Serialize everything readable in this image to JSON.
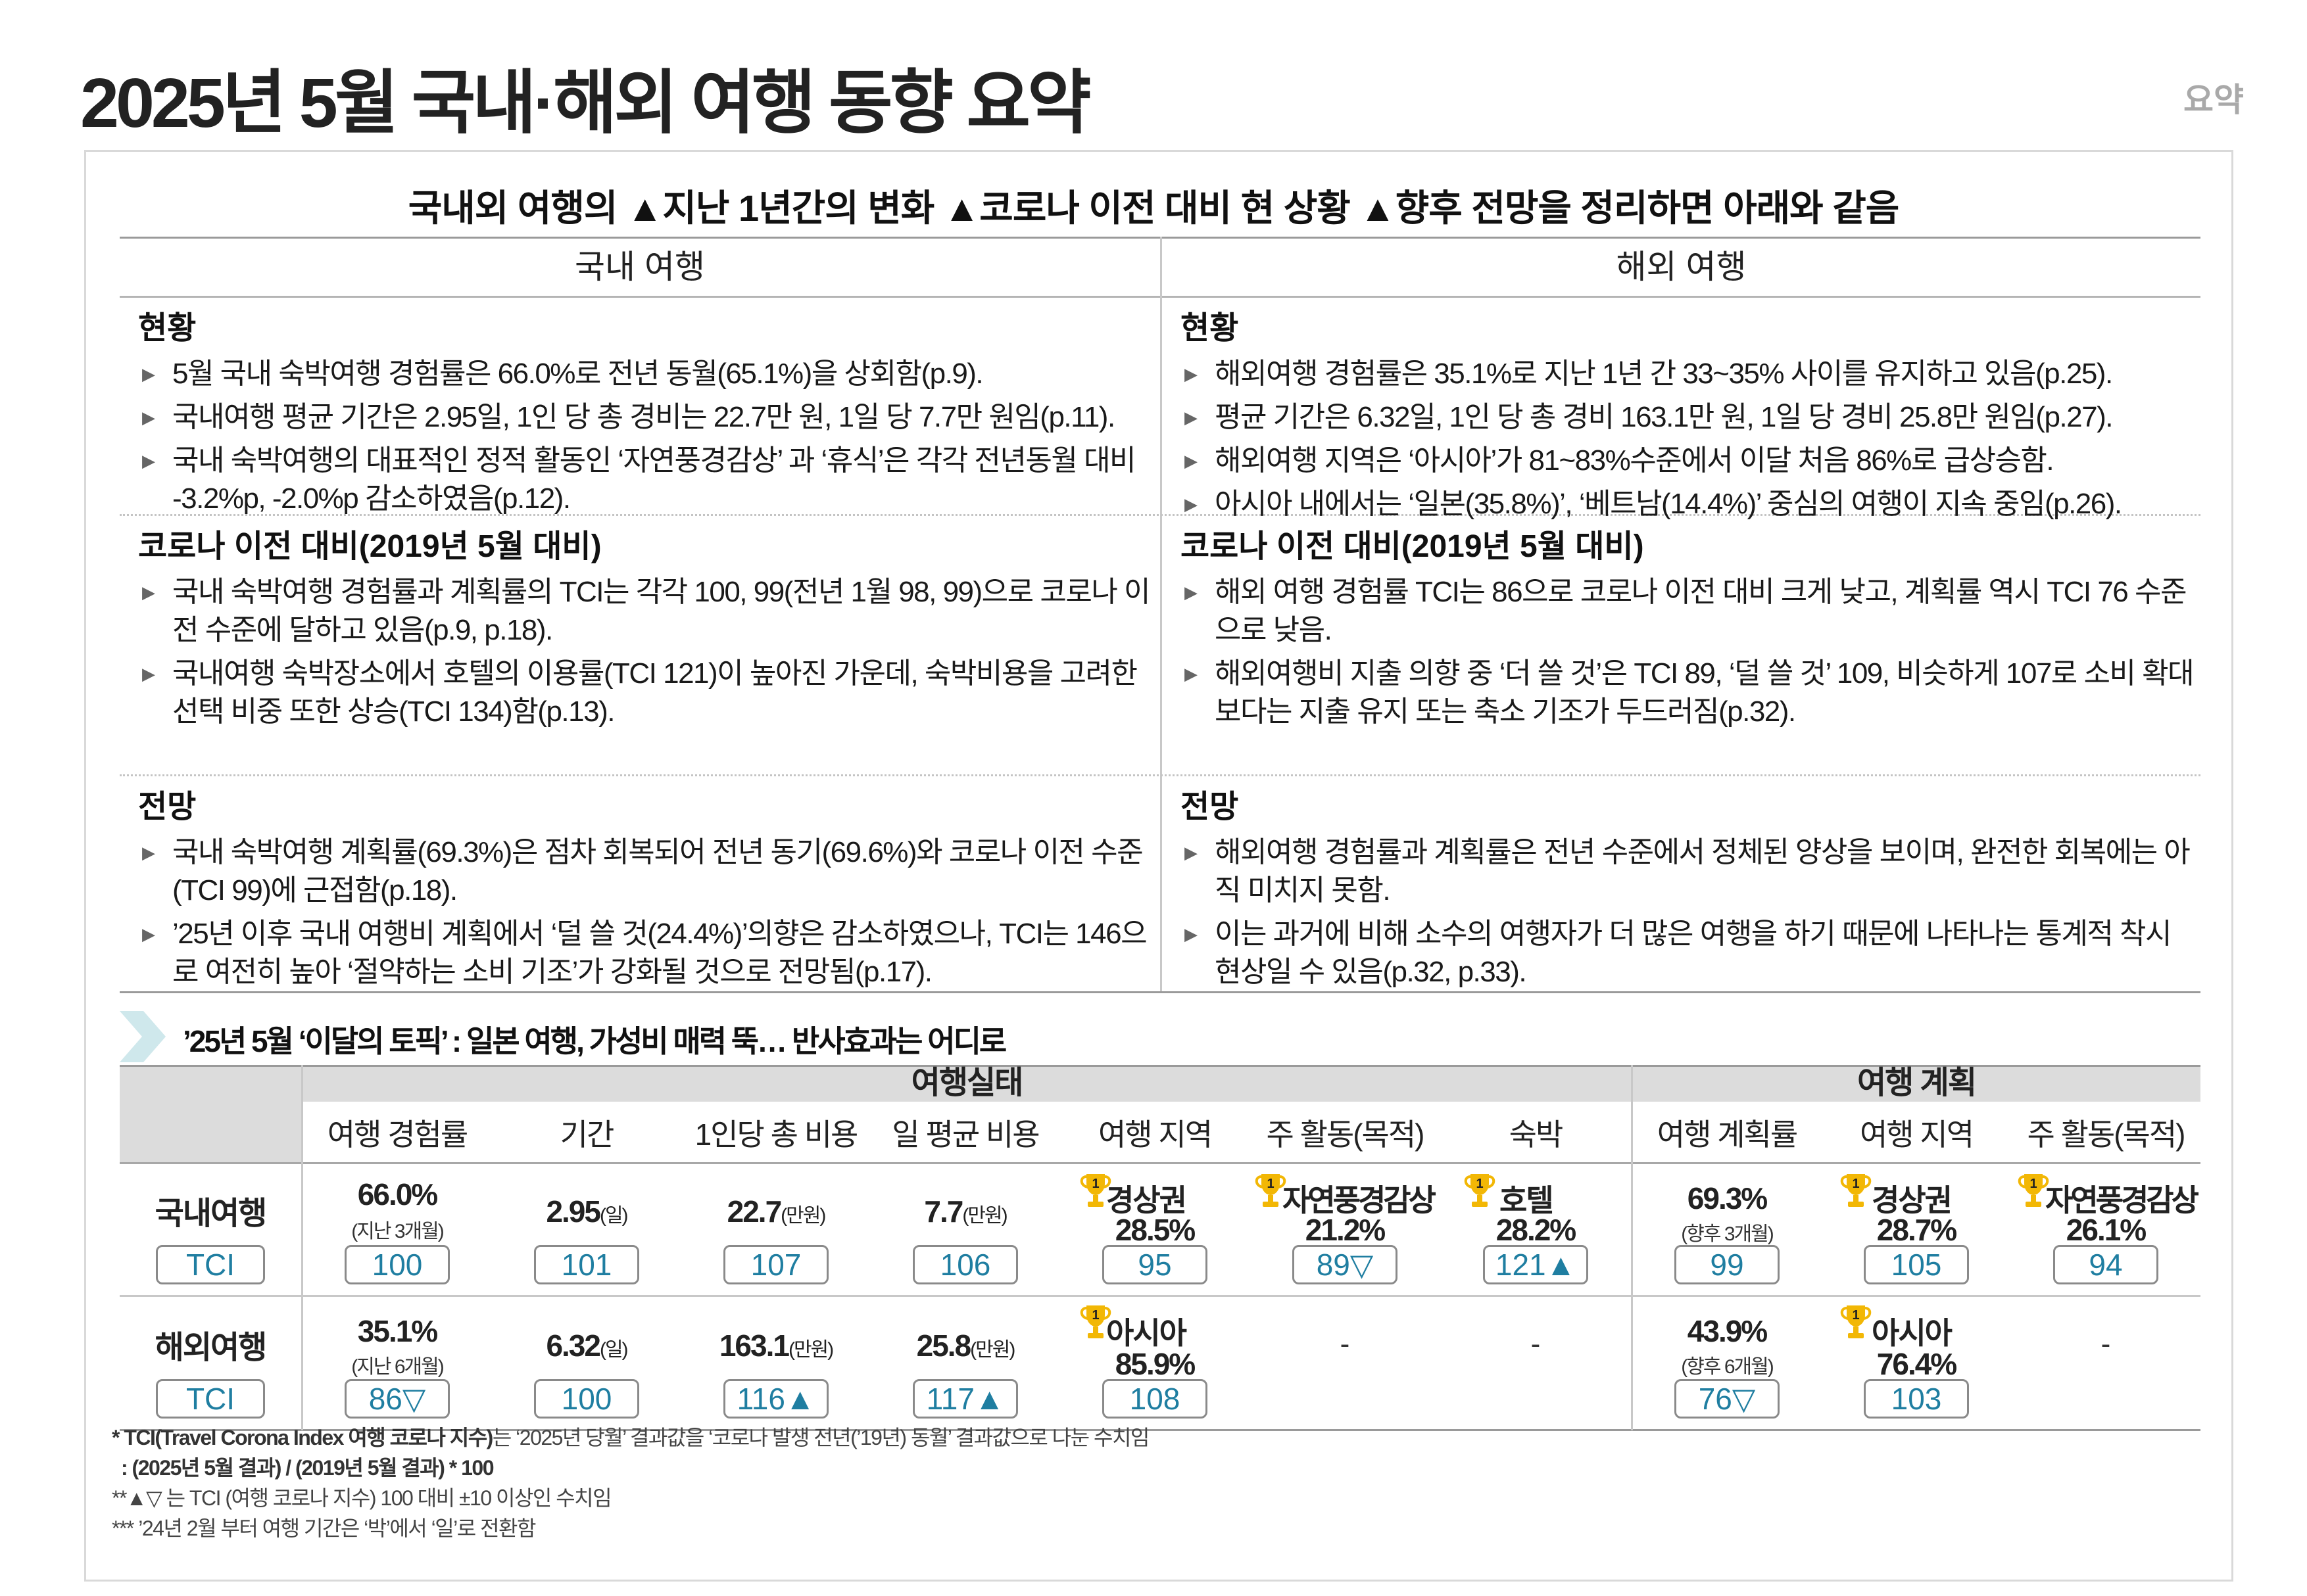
{
  "header": {
    "title": "2025년 5월 국내·해외 여행 동향 요약",
    "corner_label": "요약"
  },
  "intro": "국내외 여행의 ▲지난 1년간의 변화 ▲코로나 이전 대비 현 상황 ▲향후 전망을 정리하면 아래와 같음",
  "summary": {
    "domestic_header": "국내 여행",
    "overseas_header": "해외 여행",
    "domestic": {
      "current_title": "현황",
      "current": [
        "5월 국내 숙박여행 경험률은 66.0%로 전년 동월(65.1%)을 상회함(p.9).",
        "국내여행 평균 기간은 2.95일, 1인 당 총 경비는 22.7만 원, 1일 당 7.7만 원임(p.11).",
        "국내 숙박여행의 대표적인 정적 활동인 ‘자연풍경감상’ 과 ‘휴식’은 각각 전년동월 대비 -3.2%p, -2.0%p 감소하였음(p.12)."
      ],
      "precovid_title": "코로나 이전 대비(2019년 5월 대비)",
      "precovid": [
        "국내 숙박여행 경험률과 계획률의 TCI는 각각 100, 99(전년 1월 98, 99)으로 코로나 이전 수준에 달하고 있음(p.9, p.18).",
        "국내여행 숙박장소에서 호텔의 이용률(TCI 121)이 높아진 가운데, 숙박비용을 고려한 선택 비중 또한 상승(TCI 134)함(p.13)."
      ],
      "outlook_title": "전망",
      "outlook": [
        "국내 숙박여행 계획률(69.3%)은 점차 회복되어 전년 동기(69.6%)와 코로나 이전 수준(TCI 99)에 근접함(p.18).",
        "’25년 이후 국내 여행비 계획에서 ‘덜 쓸 것(24.4%)’의향은 감소하였으나, TCI는 146으로 여전히 높아 ‘절약하는 소비 기조’가 강화될 것으로 전망됨(p.17)."
      ]
    },
    "overseas": {
      "current_title": "현황",
      "current": [
        "해외여행 경험률은 35.1%로 지난 1년 간 33~35% 사이를 유지하고 있음(p.25).",
        "평균 기간은 6.32일, 1인 당 총 경비 163.1만 원, 1일 당 경비 25.8만 원임(p.27).",
        "해외여행 지역은 ‘아시아’가 81~83%수준에서 이달 처음 86%로 급상승함.",
        "아시아 내에서는 ‘일본(35.8%)’, ‘베트남(14.4%)’ 중심의 여행이 지속 중임(p.26)."
      ],
      "precovid_title": "코로나 이전 대비(2019년 5월 대비)",
      "precovid": [
        "해외 여행 경험률 TCI는 86으로 코로나 이전 대비 크게 낮고, 계획률 역시 TCI 76 수준으로 낮음.",
        "해외여행비 지출 의향 중 ‘더 쓸 것’은 TCI 89, ‘덜 쓸 것’ 109, 비슷하게 107로 소비 확대보다는 지출 유지 또는 축소 기조가 두드러짐(p.32)."
      ],
      "outlook_title": "전망",
      "outlook": [
        "해외여행 경험률과 계획률은 전년 수준에서 정체된 양상을 보이며, 완전한 회복에는 아직 미치지 못함.",
        "이는 과거에 비해 소수의 여행자가 더 많은 여행을 하기 때문에 나타나는 통계적 착시 현상일 수 있음(p.32, p.33)."
      ]
    }
  },
  "topic": "’25년 5월 ‘이달의 토픽’ : 일본 여행, 가성비 매력 뚝… 반사효과는 어디로",
  "table": {
    "group_actual": "여행실태",
    "group_plan": "여행 계획",
    "columns": [
      "여행 경험률",
      "기간",
      "1인당 총 비용",
      "일 평균 비용",
      "여행 지역",
      "주 활동(목적)",
      "숙박",
      "여행 계획률",
      "여행 지역",
      "주 활동(목적)"
    ],
    "rank": "1",
    "tci_label": "TCI",
    "domestic": {
      "label": "국내여행",
      "experience": "66.0%",
      "experience_note": "(지난 3개월)",
      "duration": "2.95",
      "duration_unit": "(일)",
      "total_cost": "22.7",
      "total_cost_unit": "(만원)",
      "daily_cost": "7.7",
      "daily_cost_unit": "(만원)",
      "region": "경상권",
      "region_pct": "28.5%",
      "activity": "자연풍경감상",
      "activity_pct": "21.2%",
      "lodging": "호텔",
      "lodging_pct": "28.2%",
      "plan_rate": "69.3%",
      "plan_rate_note": "(향후 3개월)",
      "plan_region": "경상권",
      "plan_region_pct": "28.7%",
      "plan_activity": "자연풍경감상",
      "plan_activity_pct": "26.1%",
      "tci": [
        "100",
        "101",
        "107",
        "106",
        "95",
        "89▽",
        "121▲",
        "99",
        "105",
        "94"
      ]
    },
    "overseas": {
      "label": "해외여행",
      "experience": "35.1%",
      "experience_note": "(지난 6개월)",
      "duration": "6.32",
      "duration_unit": "(일)",
      "total_cost": "163.1",
      "total_cost_unit": "(만원)",
      "daily_cost": "25.8",
      "daily_cost_unit": "(만원)",
      "region": "아시아",
      "region_pct": "85.9%",
      "activity": "-",
      "lodging": "-",
      "plan_rate": "43.9%",
      "plan_rate_note": "(향후 6개월)",
      "plan_region": "아시아",
      "plan_region_pct": "76.4%",
      "plan_activity": "-",
      "tci": [
        "86▽",
        "100",
        "116▲",
        "117▲",
        "108",
        "76▽",
        "103"
      ]
    }
  },
  "notes": {
    "n1_bold": "* TCI(Travel Corona Index 여행 코로나 지수)",
    "n1_rest": "는 ‘2025년 당월’ 결과값을 ‘코로나 발생 전년(’19년) 동월’ 결과값으로 나눈 수치임",
    "n2": ": (2025년 5월 결과) / (2019년 5월 결과) * 100",
    "n3": "**▲▽ 는 TCI (여행 코로나 지수) 100 대비 ±10 이상인 수치임",
    "n4": "*** ’24년 2월 부터 여행 기간은 ‘박’에서 ‘일’로 전환함"
  },
  "colors": {
    "accent": "#1f7ea1",
    "trophy": "#f2b705",
    "header_bg": "#dcdcdc",
    "arrow": "#cfe8ec"
  }
}
